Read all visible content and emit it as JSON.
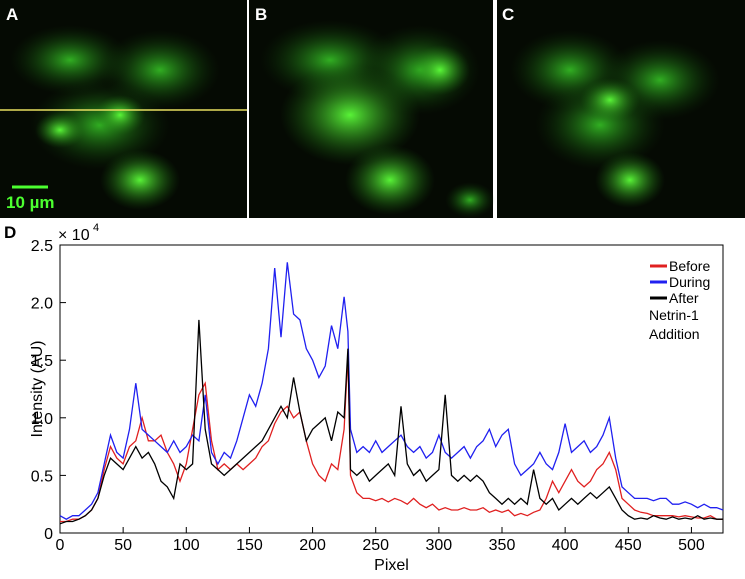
{
  "panels": {
    "a": "A",
    "b": "B",
    "c": "C",
    "d": "D",
    "scale_bar": "10 µm"
  },
  "chart_data": {
    "type": "line",
    "xlabel": "Pixel",
    "ylabel": "Intensity (AU)",
    "y_multiplier": {
      "base": "× 10",
      "exponent": "4"
    },
    "annotation": [
      "Netrin-1",
      "Addition"
    ],
    "xlim": [
      0,
      525
    ],
    "xticks": [
      0,
      50,
      100,
      150,
      200,
      250,
      300,
      350,
      400,
      450,
      500
    ],
    "ylim": [
      0,
      2.5
    ],
    "yticks": [
      0,
      0.5,
      {
        "value": 1,
        "label": "1.0"
      },
      1.5,
      {
        "value": 2,
        "label": "2.0"
      },
      2.5
    ],
    "x": [
      0,
      5,
      10,
      15,
      20,
      25,
      30,
      35,
      40,
      45,
      50,
      55,
      60,
      65,
      70,
      75,
      80,
      85,
      90,
      95,
      100,
      105,
      110,
      115,
      120,
      125,
      130,
      135,
      140,
      145,
      150,
      155,
      160,
      165,
      170,
      175,
      180,
      185,
      190,
      195,
      200,
      205,
      210,
      215,
      220,
      225,
      228,
      230,
      235,
      240,
      245,
      250,
      255,
      260,
      265,
      270,
      275,
      280,
      285,
      290,
      295,
      300,
      305,
      310,
      315,
      320,
      325,
      330,
      335,
      340,
      345,
      350,
      355,
      360,
      365,
      370,
      375,
      380,
      385,
      390,
      395,
      400,
      405,
      410,
      415,
      420,
      425,
      430,
      435,
      440,
      445,
      450,
      455,
      460,
      465,
      470,
      475,
      480,
      485,
      490,
      495,
      500,
      505,
      510,
      515,
      520,
      525
    ],
    "series": [
      {
        "name": "Before",
        "color": "#e02020",
        "values": [
          0.1,
          0.1,
          0.12,
          0.12,
          0.15,
          0.2,
          0.3,
          0.55,
          0.75,
          0.65,
          0.6,
          0.75,
          0.8,
          1.0,
          0.8,
          0.8,
          0.85,
          0.7,
          0.6,
          0.45,
          0.6,
          0.9,
          1.2,
          1.3,
          0.8,
          0.55,
          0.6,
          0.55,
          0.6,
          0.55,
          0.6,
          0.65,
          0.75,
          0.8,
          0.95,
          1.05,
          1.1,
          1.0,
          1.05,
          0.8,
          0.6,
          0.5,
          0.45,
          0.6,
          0.55,
          0.9,
          1.55,
          0.5,
          0.35,
          0.3,
          0.3,
          0.28,
          0.3,
          0.27,
          0.3,
          0.28,
          0.25,
          0.3,
          0.25,
          0.22,
          0.25,
          0.2,
          0.22,
          0.2,
          0.2,
          0.22,
          0.2,
          0.2,
          0.22,
          0.18,
          0.2,
          0.18,
          0.2,
          0.15,
          0.17,
          0.15,
          0.18,
          0.2,
          0.3,
          0.45,
          0.35,
          0.45,
          0.55,
          0.45,
          0.4,
          0.45,
          0.55,
          0.6,
          0.7,
          0.55,
          0.3,
          0.25,
          0.2,
          0.18,
          0.17,
          0.15,
          0.15,
          0.15,
          0.15,
          0.14,
          0.15,
          0.14,
          0.13,
          0.13,
          0.15,
          0.12,
          0.12
        ]
      },
      {
        "name": "During",
        "color": "#2020f0",
        "values": [
          0.15,
          0.12,
          0.15,
          0.15,
          0.2,
          0.25,
          0.35,
          0.6,
          0.85,
          0.7,
          0.65,
          0.9,
          1.3,
          0.9,
          0.85,
          0.8,
          0.75,
          0.7,
          0.8,
          0.7,
          0.75,
          0.85,
          0.8,
          1.2,
          0.7,
          0.6,
          0.7,
          0.65,
          0.8,
          1.0,
          1.2,
          1.1,
          1.3,
          1.6,
          2.3,
          1.7,
          2.35,
          1.9,
          1.85,
          1.6,
          1.5,
          1.35,
          1.45,
          1.8,
          1.6,
          2.05,
          1.75,
          0.9,
          0.7,
          0.75,
          0.7,
          0.8,
          0.7,
          0.75,
          0.8,
          0.85,
          0.75,
          0.7,
          0.75,
          0.65,
          0.7,
          0.85,
          0.7,
          0.65,
          0.7,
          0.75,
          0.65,
          0.75,
          0.8,
          0.9,
          0.75,
          0.85,
          0.9,
          0.6,
          0.5,
          0.55,
          0.6,
          0.7,
          0.6,
          0.55,
          0.7,
          0.95,
          0.7,
          0.75,
          0.8,
          0.7,
          0.75,
          0.85,
          1.0,
          0.65,
          0.4,
          0.35,
          0.3,
          0.3,
          0.3,
          0.28,
          0.3,
          0.3,
          0.25,
          0.25,
          0.27,
          0.25,
          0.22,
          0.25,
          0.22,
          0.22,
          0.2
        ]
      },
      {
        "name": "After",
        "color": "#000000",
        "values": [
          0.08,
          0.1,
          0.1,
          0.12,
          0.15,
          0.2,
          0.3,
          0.5,
          0.65,
          0.6,
          0.55,
          0.65,
          0.75,
          0.65,
          0.7,
          0.6,
          0.45,
          0.4,
          0.3,
          0.6,
          0.55,
          0.6,
          1.85,
          0.9,
          0.6,
          0.55,
          0.5,
          0.55,
          0.6,
          0.65,
          0.7,
          0.75,
          0.8,
          0.9,
          1.0,
          1.1,
          1.0,
          1.35,
          1.05,
          0.8,
          0.9,
          0.95,
          1.0,
          0.8,
          1.05,
          1.0,
          1.6,
          0.55,
          0.5,
          0.55,
          0.45,
          0.5,
          0.55,
          0.6,
          0.5,
          1.1,
          0.6,
          0.5,
          0.55,
          0.45,
          0.5,
          0.55,
          1.2,
          0.5,
          0.45,
          0.5,
          0.45,
          0.5,
          0.45,
          0.35,
          0.3,
          0.25,
          0.3,
          0.25,
          0.3,
          0.25,
          0.55,
          0.3,
          0.25,
          0.3,
          0.2,
          0.25,
          0.3,
          0.25,
          0.3,
          0.35,
          0.3,
          0.35,
          0.4,
          0.3,
          0.2,
          0.15,
          0.12,
          0.13,
          0.12,
          0.15,
          0.13,
          0.12,
          0.14,
          0.12,
          0.13,
          0.12,
          0.15,
          0.12,
          0.13,
          0.12,
          0.12
        ]
      }
    ]
  }
}
